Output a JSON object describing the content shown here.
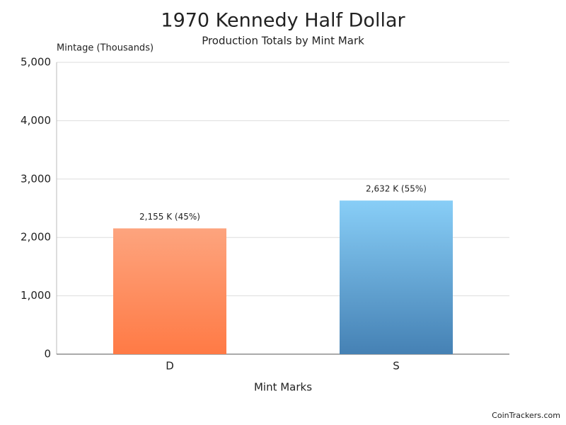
{
  "chart_data": {
    "type": "bar",
    "title": "1970 Kennedy Half Dollar",
    "subtitle": "Production Totals by Mint Mark",
    "y_axis_label": "Mintage (Thousands)",
    "x_axis_label": "Mint Marks",
    "categories": [
      "D",
      "S"
    ],
    "values": [
      2155,
      2632
    ],
    "value_labels": [
      "2,155 K (45%)",
      "2,632 K (55%)"
    ],
    "colors": [
      [
        "#fda47e",
        "#ff7a45"
      ],
      [
        "#88cef7",
        "#4581b4"
      ]
    ],
    "ylim": [
      0,
      5000
    ],
    "yticks": [
      0,
      {
        "value": 1000,
        "label": "1,000"
      },
      {
        "value": 2000,
        "label": "2,000"
      },
      {
        "value": 3000,
        "label": "3,000"
      },
      {
        "value": 4000,
        "label": "4,000"
      },
      {
        "value": 5000,
        "label": "5,000"
      }
    ],
    "grid": true,
    "footer": "CoinTrackers.com"
  }
}
